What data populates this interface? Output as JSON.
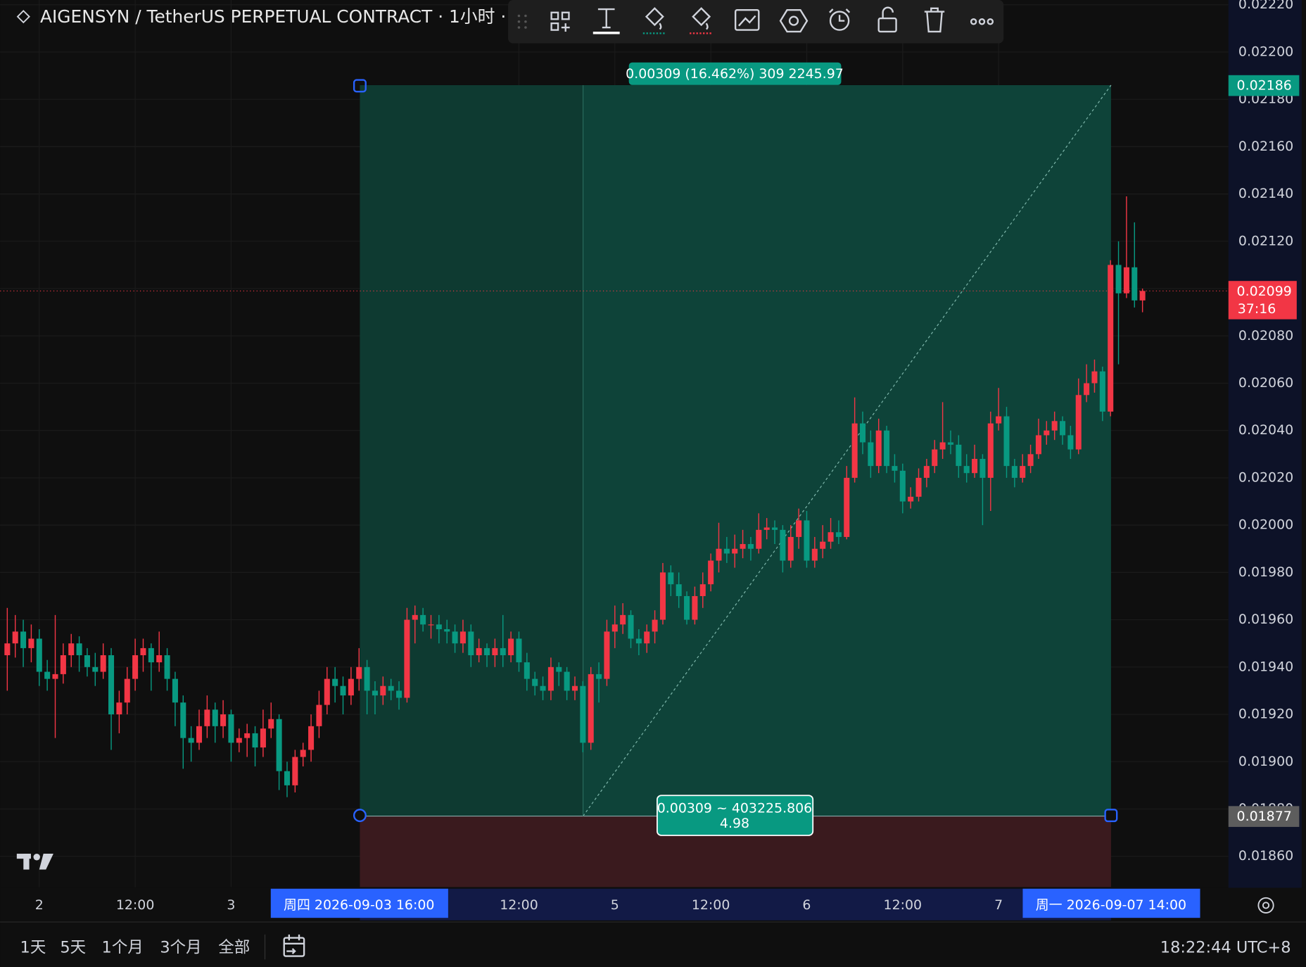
{
  "header": {
    "symbol_title": "AIGENSYN / TetherUS PERPETUAL CONTRACT · 1小时 ·"
  },
  "chart_data": {
    "type": "candlestick",
    "up_color": "#f23645",
    "down_color": "#089981",
    "grid": true,
    "ylim": [
      0.01847,
      0.02222
    ],
    "yticks": [
      {
        "value": 0.0186,
        "label": "0.01860"
      },
      {
        "value": 0.0188,
        "label": "0.01880"
      },
      {
        "value": 0.019,
        "label": "0.01900"
      },
      {
        "value": 0.0192,
        "label": "0.01920"
      },
      {
        "value": 0.0194,
        "label": "0.01940"
      },
      {
        "value": 0.0196,
        "label": "0.01960"
      },
      {
        "value": 0.0198,
        "label": "0.01980"
      },
      {
        "value": 0.02,
        "label": "0.02000"
      },
      {
        "value": 0.0202,
        "label": "0.02020"
      },
      {
        "value": 0.0204,
        "label": "0.02040"
      },
      {
        "value": 0.0206,
        "label": "0.02060"
      },
      {
        "value": 0.0208,
        "label": "0.02080"
      },
      {
        "value": 0.021,
        "label": "0.02100"
      },
      {
        "value": 0.0212,
        "label": "0.02120"
      },
      {
        "value": 0.0214,
        "label": "0.02140"
      },
      {
        "value": 0.0216,
        "label": "0.02160"
      },
      {
        "value": 0.0218,
        "label": "0.02180"
      },
      {
        "value": 0.022,
        "label": "0.02200"
      },
      {
        "value": 0.0222,
        "label": "0.02220"
      }
    ],
    "categories": [
      null,
      null,
      null,
      null,
      "2",
      null,
      null,
      null,
      null,
      null,
      null,
      null,
      null,
      null,
      null,
      null,
      "12:00",
      null,
      null,
      null,
      null,
      null,
      null,
      null,
      null,
      null,
      null,
      null,
      "3",
      null,
      null,
      null,
      null,
      null,
      null,
      null,
      null,
      null,
      null,
      null,
      null,
      null,
      null,
      null,
      null,
      null,
      null,
      null,
      null,
      null,
      null,
      null,
      null,
      null,
      null,
      null,
      null,
      null,
      null,
      null,
      null,
      null,
      null,
      null,
      "12:00",
      null,
      null,
      null,
      null,
      null,
      null,
      null,
      null,
      null,
      null,
      null,
      "5",
      null,
      null,
      null,
      null,
      null,
      null,
      null,
      null,
      null,
      null,
      null,
      "12:00",
      null,
      null,
      null,
      null,
      null,
      null,
      null,
      null,
      null,
      null,
      null,
      "6",
      null,
      null,
      null,
      null,
      null,
      null,
      null,
      null,
      null,
      null,
      null,
      "12:00",
      null,
      null,
      null,
      null,
      null,
      null,
      null,
      null,
      null,
      null,
      null,
      "7",
      null,
      null,
      null,
      null,
      null,
      null,
      null,
      null,
      null,
      null,
      null,
      null,
      null,
      null,
      null,
      null,
      null,
      null
    ],
    "ohlc": [
      [
        0.01945,
        0.01965,
        0.0193,
        0.0195
      ],
      [
        0.0195,
        0.01962,
        0.01944,
        0.01955
      ],
      [
        0.01955,
        0.0196,
        0.0194,
        0.01948
      ],
      [
        0.01948,
        0.01958,
        0.01942,
        0.01952
      ],
      [
        0.01952,
        0.01956,
        0.01932,
        0.01938
      ],
      [
        0.01938,
        0.01943,
        0.0193,
        0.01935
      ],
      [
        0.01935,
        0.01962,
        0.0191,
        0.01937
      ],
      [
        0.01937,
        0.0195,
        0.01933,
        0.01945
      ],
      [
        0.01945,
        0.01954,
        0.0194,
        0.0195
      ],
      [
        0.0195,
        0.01953,
        0.01938,
        0.01945
      ],
      [
        0.01945,
        0.01948,
        0.01936,
        0.0194
      ],
      [
        0.0194,
        0.01946,
        0.01932,
        0.01938
      ],
      [
        0.01938,
        0.0195,
        0.01935,
        0.01945
      ],
      [
        0.01945,
        0.01948,
        0.01905,
        0.0192
      ],
      [
        0.0192,
        0.0193,
        0.01912,
        0.01925
      ],
      [
        0.01925,
        0.0194,
        0.0192,
        0.01935
      ],
      [
        0.01935,
        0.01952,
        0.0193,
        0.01945
      ],
      [
        0.01945,
        0.01952,
        0.01938,
        0.01948
      ],
      [
        0.01948,
        0.0195,
        0.0193,
        0.01942
      ],
      [
        0.01942,
        0.01955,
        0.01938,
        0.01945
      ],
      [
        0.01945,
        0.01948,
        0.0193,
        0.01935
      ],
      [
        0.01935,
        0.01938,
        0.01915,
        0.01925
      ],
      [
        0.01925,
        0.01928,
        0.01897,
        0.0191
      ],
      [
        0.0191,
        0.01915,
        0.019,
        0.01908
      ],
      [
        0.01908,
        0.01922,
        0.01905,
        0.01915
      ],
      [
        0.01915,
        0.01928,
        0.0191,
        0.01922
      ],
      [
        0.01922,
        0.01925,
        0.01908,
        0.01915
      ],
      [
        0.01915,
        0.01926,
        0.0191,
        0.0192
      ],
      [
        0.0192,
        0.01922,
        0.019,
        0.01908
      ],
      [
        0.01908,
        0.01914,
        0.01904,
        0.0191
      ],
      [
        0.0191,
        0.01916,
        0.01902,
        0.01912
      ],
      [
        0.01912,
        0.01915,
        0.01898,
        0.01906
      ],
      [
        0.01906,
        0.01922,
        0.01902,
        0.01914
      ],
      [
        0.01914,
        0.01925,
        0.0191,
        0.01918
      ],
      [
        0.01918,
        0.0192,
        0.01888,
        0.01896
      ],
      [
        0.01896,
        0.019,
        0.01885,
        0.0189
      ],
      [
        0.0189,
        0.01905,
        0.01887,
        0.01902
      ],
      [
        0.01902,
        0.01908,
        0.01898,
        0.01905
      ],
      [
        0.01905,
        0.0192,
        0.019,
        0.01915
      ],
      [
        0.01915,
        0.0193,
        0.0191,
        0.01924
      ],
      [
        0.01924,
        0.0194,
        0.0192,
        0.01935
      ],
      [
        0.01935,
        0.0194,
        0.01925,
        0.01932
      ],
      [
        0.01932,
        0.01936,
        0.0192,
        0.01928
      ],
      [
        0.01928,
        0.0194,
        0.01924,
        0.01935
      ],
      [
        0.01935,
        0.01948,
        0.0193,
        0.0194
      ],
      [
        0.0194,
        0.01943,
        0.0192,
        0.0193
      ],
      [
        0.0193,
        0.01934,
        0.0192,
        0.01928
      ],
      [
        0.01928,
        0.01936,
        0.01924,
        0.01932
      ],
      [
        0.01932,
        0.01935,
        0.01926,
        0.0193
      ],
      [
        0.0193,
        0.01934,
        0.01922,
        0.01927
      ],
      [
        0.01927,
        0.01965,
        0.01925,
        0.0196
      ],
      [
        0.0196,
        0.01966,
        0.0195,
        0.01962
      ],
      [
        0.01962,
        0.01965,
        0.01955,
        0.01958
      ],
      [
        0.01958,
        0.01962,
        0.01952,
        0.01958
      ],
      [
        0.01958,
        0.01962,
        0.0195,
        0.01956
      ],
      [
        0.01956,
        0.0196,
        0.0195,
        0.01955
      ],
      [
        0.01955,
        0.01958,
        0.01946,
        0.0195
      ],
      [
        0.0195,
        0.0196,
        0.01946,
        0.01955
      ],
      [
        0.01955,
        0.01958,
        0.0194,
        0.01945
      ],
      [
        0.01945,
        0.01952,
        0.01942,
        0.01948
      ],
      [
        0.01948,
        0.0195,
        0.0194,
        0.01945
      ],
      [
        0.01945,
        0.01952,
        0.0194,
        0.01948
      ],
      [
        0.01948,
        0.01962,
        0.0194,
        0.01945
      ],
      [
        0.01945,
        0.01955,
        0.01942,
        0.01952
      ],
      [
        0.01952,
        0.01955,
        0.01938,
        0.01942
      ],
      [
        0.01942,
        0.01946,
        0.0193,
        0.01935
      ],
      [
        0.01935,
        0.01938,
        0.01928,
        0.01932
      ],
      [
        0.01932,
        0.01936,
        0.01926,
        0.0193
      ],
      [
        0.0193,
        0.01944,
        0.01926,
        0.0194
      ],
      [
        0.0194,
        0.01942,
        0.01932,
        0.01938
      ],
      [
        0.01938,
        0.0194,
        0.01926,
        0.0193
      ],
      [
        0.0193,
        0.01936,
        0.01926,
        0.01932
      ],
      [
        0.01932,
        0.01934,
        0.01904,
        0.01908
      ],
      [
        0.01908,
        0.0194,
        0.01905,
        0.01937
      ],
      [
        0.01937,
        0.01942,
        0.01925,
        0.01935
      ],
      [
        0.01935,
        0.0196,
        0.01932,
        0.01955
      ],
      [
        0.01955,
        0.01966,
        0.01948,
        0.01958
      ],
      [
        0.01958,
        0.01967,
        0.01954,
        0.01962
      ],
      [
        0.01962,
        0.01964,
        0.01948,
        0.01952
      ],
      [
        0.01952,
        0.01956,
        0.01945,
        0.0195
      ],
      [
        0.0195,
        0.01958,
        0.01946,
        0.01955
      ],
      [
        0.01955,
        0.01964,
        0.0195,
        0.0196
      ],
      [
        0.0196,
        0.01984,
        0.01958,
        0.0198
      ],
      [
        0.0198,
        0.01983,
        0.0197,
        0.01975
      ],
      [
        0.01975,
        0.0198,
        0.01965,
        0.0197
      ],
      [
        0.0197,
        0.01972,
        0.01958,
        0.0196
      ],
      [
        0.0196,
        0.01974,
        0.01958,
        0.0197
      ],
      [
        0.0197,
        0.0198,
        0.01965,
        0.01975
      ],
      [
        0.01975,
        0.01988,
        0.01972,
        0.01985
      ],
      [
        0.01985,
        0.02001,
        0.0198,
        0.0199
      ],
      [
        0.0199,
        0.01995,
        0.01984,
        0.01988
      ],
      [
        0.01988,
        0.01996,
        0.01982,
        0.0199
      ],
      [
        0.0199,
        0.01998,
        0.01986,
        0.01992
      ],
      [
        0.01992,
        0.01995,
        0.01985,
        0.0199
      ],
      [
        0.0199,
        0.02005,
        0.01988,
        0.01998
      ],
      [
        0.01998,
        0.02003,
        0.01994,
        0.01999
      ],
      [
        0.01999,
        0.02002,
        0.01992,
        0.01998
      ],
      [
        0.01998,
        0.02,
        0.0198,
        0.01985
      ],
      [
        0.01985,
        0.02,
        0.01982,
        0.01995
      ],
      [
        0.01995,
        0.02007,
        0.0199,
        0.02002
      ],
      [
        0.02002,
        0.02006,
        0.01982,
        0.01985
      ],
      [
        0.01985,
        0.01995,
        0.01982,
        0.0199
      ],
      [
        0.0199,
        0.02,
        0.01986,
        0.01993
      ],
      [
        0.01993,
        0.02003,
        0.0199,
        0.01997
      ],
      [
        0.01997,
        0.02002,
        0.01992,
        0.01995
      ],
      [
        0.01995,
        0.02025,
        0.01994,
        0.0202
      ],
      [
        0.0202,
        0.02054,
        0.02018,
        0.02043
      ],
      [
        0.02043,
        0.02048,
        0.0203,
        0.02035
      ],
      [
        0.02035,
        0.0204,
        0.0202,
        0.02025
      ],
      [
        0.02025,
        0.02045,
        0.02022,
        0.0204
      ],
      [
        0.0204,
        0.02042,
        0.02022,
        0.02025
      ],
      [
        0.02025,
        0.0203,
        0.02018,
        0.02023
      ],
      [
        0.02023,
        0.02026,
        0.02005,
        0.0201
      ],
      [
        0.0201,
        0.02016,
        0.02007,
        0.02012
      ],
      [
        0.02012,
        0.02024,
        0.0201,
        0.0202
      ],
      [
        0.0202,
        0.02028,
        0.02016,
        0.02025
      ],
      [
        0.02025,
        0.02036,
        0.02022,
        0.02032
      ],
      [
        0.02032,
        0.02052,
        0.02028,
        0.02035
      ],
      [
        0.02035,
        0.0204,
        0.0203,
        0.02034
      ],
      [
        0.02034,
        0.02038,
        0.0202,
        0.02025
      ],
      [
        0.02025,
        0.0203,
        0.02018,
        0.02022
      ],
      [
        0.02022,
        0.02034,
        0.0202,
        0.02028
      ],
      [
        0.02028,
        0.0203,
        0.02,
        0.0202
      ],
      [
        0.0202,
        0.02048,
        0.02006,
        0.02043
      ],
      [
        0.02043,
        0.02058,
        0.0204,
        0.02046
      ],
      [
        0.02046,
        0.0205,
        0.0202,
        0.02025
      ],
      [
        0.02025,
        0.02028,
        0.02016,
        0.0202
      ],
      [
        0.0202,
        0.0203,
        0.02018,
        0.02025
      ],
      [
        0.02025,
        0.02034,
        0.02022,
        0.0203
      ],
      [
        0.0203,
        0.02045,
        0.02028,
        0.02038
      ],
      [
        0.02038,
        0.02044,
        0.02034,
        0.0204
      ],
      [
        0.0204,
        0.02048,
        0.02036,
        0.02044
      ],
      [
        0.02044,
        0.02046,
        0.02034,
        0.02038
      ],
      [
        0.02038,
        0.02042,
        0.02028,
        0.02032
      ],
      [
        0.02032,
        0.02062,
        0.0203,
        0.02055
      ],
      [
        0.02055,
        0.02068,
        0.02052,
        0.0206
      ],
      [
        0.0206,
        0.0207,
        0.02056,
        0.02065
      ],
      [
        0.02065,
        0.02067,
        0.02044,
        0.02048
      ],
      [
        0.02048,
        0.02112,
        0.02046,
        0.0211
      ],
      [
        0.0211,
        0.0212,
        0.02068,
        0.02098
      ],
      [
        0.02098,
        0.02139,
        0.02096,
        0.02109
      ],
      [
        0.02109,
        0.02128,
        0.02092,
        0.02095
      ],
      [
        0.02095,
        0.021,
        0.0209,
        0.02099
      ]
    ],
    "last_price": 0.02099,
    "countdown": "37:16",
    "measure": {
      "high": 0.02186,
      "low": 0.01877,
      "top_label": "0.00309 (16.462%) 309 2245.97",
      "bottom_label_1": "0.00309 ~ 403225.806",
      "bottom_label_2": "4.98",
      "start_time": "周四 2026-09-03   16:00",
      "end_time": "周一 2026-09-07   14:00"
    }
  },
  "footer": {
    "range_buttons": [
      "1天",
      "5天",
      "1个月",
      "3个月",
      "全部"
    ],
    "clock": "18:22:44 UTC+8"
  }
}
